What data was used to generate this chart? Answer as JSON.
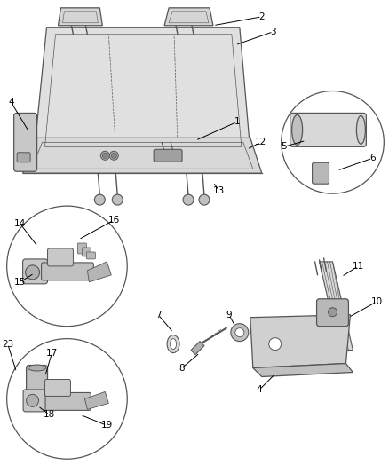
{
  "background_color": "#ffffff",
  "line_color": "#555555",
  "fill_light": "#e8e8e8",
  "fill_mid": "#d0d0d0",
  "fill_dark": "#b8b8b8",
  "figsize": [
    4.38,
    5.33
  ],
  "dpi": 100,
  "font_size": 7.5
}
